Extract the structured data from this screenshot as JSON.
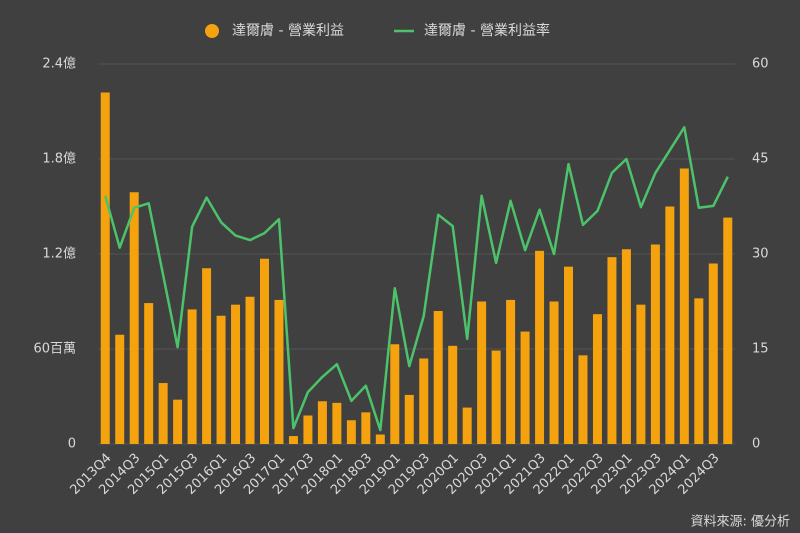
{
  "chart_data": {
    "type": "bar_line",
    "categories": [
      "2013Q4",
      null,
      "2014Q3",
      null,
      "2015Q1",
      null,
      "2015Q3",
      null,
      "2016Q1",
      null,
      "2016Q3",
      null,
      "2017Q1",
      null,
      "2017Q3",
      null,
      "2018Q1",
      null,
      "2018Q3",
      null,
      "2019Q1",
      null,
      "2019Q3",
      null,
      "2020Q1",
      null,
      "2020Q3",
      null,
      "2021Q1",
      null,
      "2021Q3",
      null,
      "2022Q1",
      null,
      "2022Q3",
      null,
      "2023Q1",
      null,
      "2023Q3",
      null,
      "2024Q1",
      null,
      "2024Q3",
      null
    ],
    "series": [
      {
        "name": "達爾膚 - 營業利益",
        "color": "#f5a20f",
        "kind": "bar",
        "axis": "y",
        "values": [
          2.22,
          0.69,
          1.59,
          0.89,
          0.385,
          0.28,
          0.85,
          1.11,
          0.81,
          0.88,
          0.93,
          1.17,
          0.91,
          0.05,
          0.18,
          0.27,
          0.26,
          0.15,
          0.2,
          0.06,
          0.63,
          0.31,
          0.54,
          0.84,
          0.62,
          0.23,
          0.9,
          0.59,
          0.91,
          0.71,
          1.22,
          0.9,
          1.12,
          0.56,
          0.82,
          1.18,
          1.23,
          0.88,
          1.26,
          1.5,
          1.74,
          0.92,
          1.14,
          1.43
        ]
      },
      {
        "name": "達爾膚 - 營業利益率",
        "color": "#4cc36a",
        "kind": "line",
        "axis": "y2",
        "values": [
          39.2,
          31,
          37.3,
          38,
          26.7,
          15.3,
          34.3,
          38.9,
          35,
          32.9,
          32.2,
          33.3,
          35.5,
          2.5,
          8.2,
          10.6,
          12.6,
          6.8,
          9.2,
          2.2,
          24.6,
          12.3,
          20.2,
          36.2,
          34.4,
          16.6,
          39.2,
          28.6,
          38.4,
          30.6,
          37,
          30,
          44.2,
          34.6,
          36.8,
          42.8,
          45,
          37.4,
          42.8,
          46.4,
          50,
          37.3,
          37.6,
          42.2
        ]
      }
    ],
    "ylim": [
      0,
      2.4
    ],
    "yticks": [
      0,
      {
        "value": 0.6,
        "label": "60百萬"
      },
      {
        "value": 1.2,
        "label": "1.2億"
      },
      {
        "value": 1.8,
        "label": "1.8億"
      },
      {
        "value": 2.4,
        "label": "2.4億"
      }
    ],
    "y2lim": [
      0,
      60
    ],
    "y2ticks": [
      0,
      15,
      30,
      45,
      60
    ],
    "grid": true,
    "legend": "top",
    "source": "資料來源: 優分析"
  }
}
